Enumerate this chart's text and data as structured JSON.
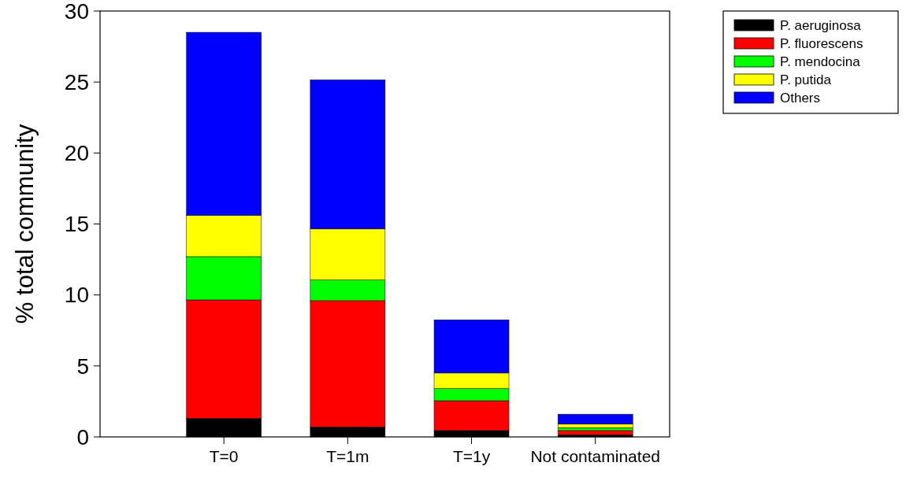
{
  "chart_data": {
    "type": "bar",
    "stacked": true,
    "ylabel": "% total community",
    "categories": [
      "T=0",
      "T=1m",
      "T=1y",
      "Not contaminated"
    ],
    "series": [
      {
        "name": "P. aeruginosa",
        "color": "#000000",
        "values": [
          1.3,
          0.7,
          0.45,
          0.15
        ]
      },
      {
        "name": "P. fluorescens",
        "color": "#ff0000",
        "values": [
          8.35,
          8.9,
          2.1,
          0.3
        ]
      },
      {
        "name": "P. mendocina",
        "color": "#00ff00",
        "values": [
          3.05,
          1.45,
          0.85,
          0.2
        ]
      },
      {
        "name": "P. putida",
        "color": "#ffff00",
        "values": [
          2.9,
          3.6,
          1.1,
          0.25
        ]
      },
      {
        "name": "Others",
        "color": "#0000ff",
        "values": [
          12.9,
          10.5,
          3.75,
          0.7
        ]
      }
    ],
    "ylim": [
      0,
      30
    ],
    "yticks": [
      0,
      5,
      10,
      15,
      20,
      25,
      30
    ],
    "legend": "top right",
    "grid": false
  }
}
